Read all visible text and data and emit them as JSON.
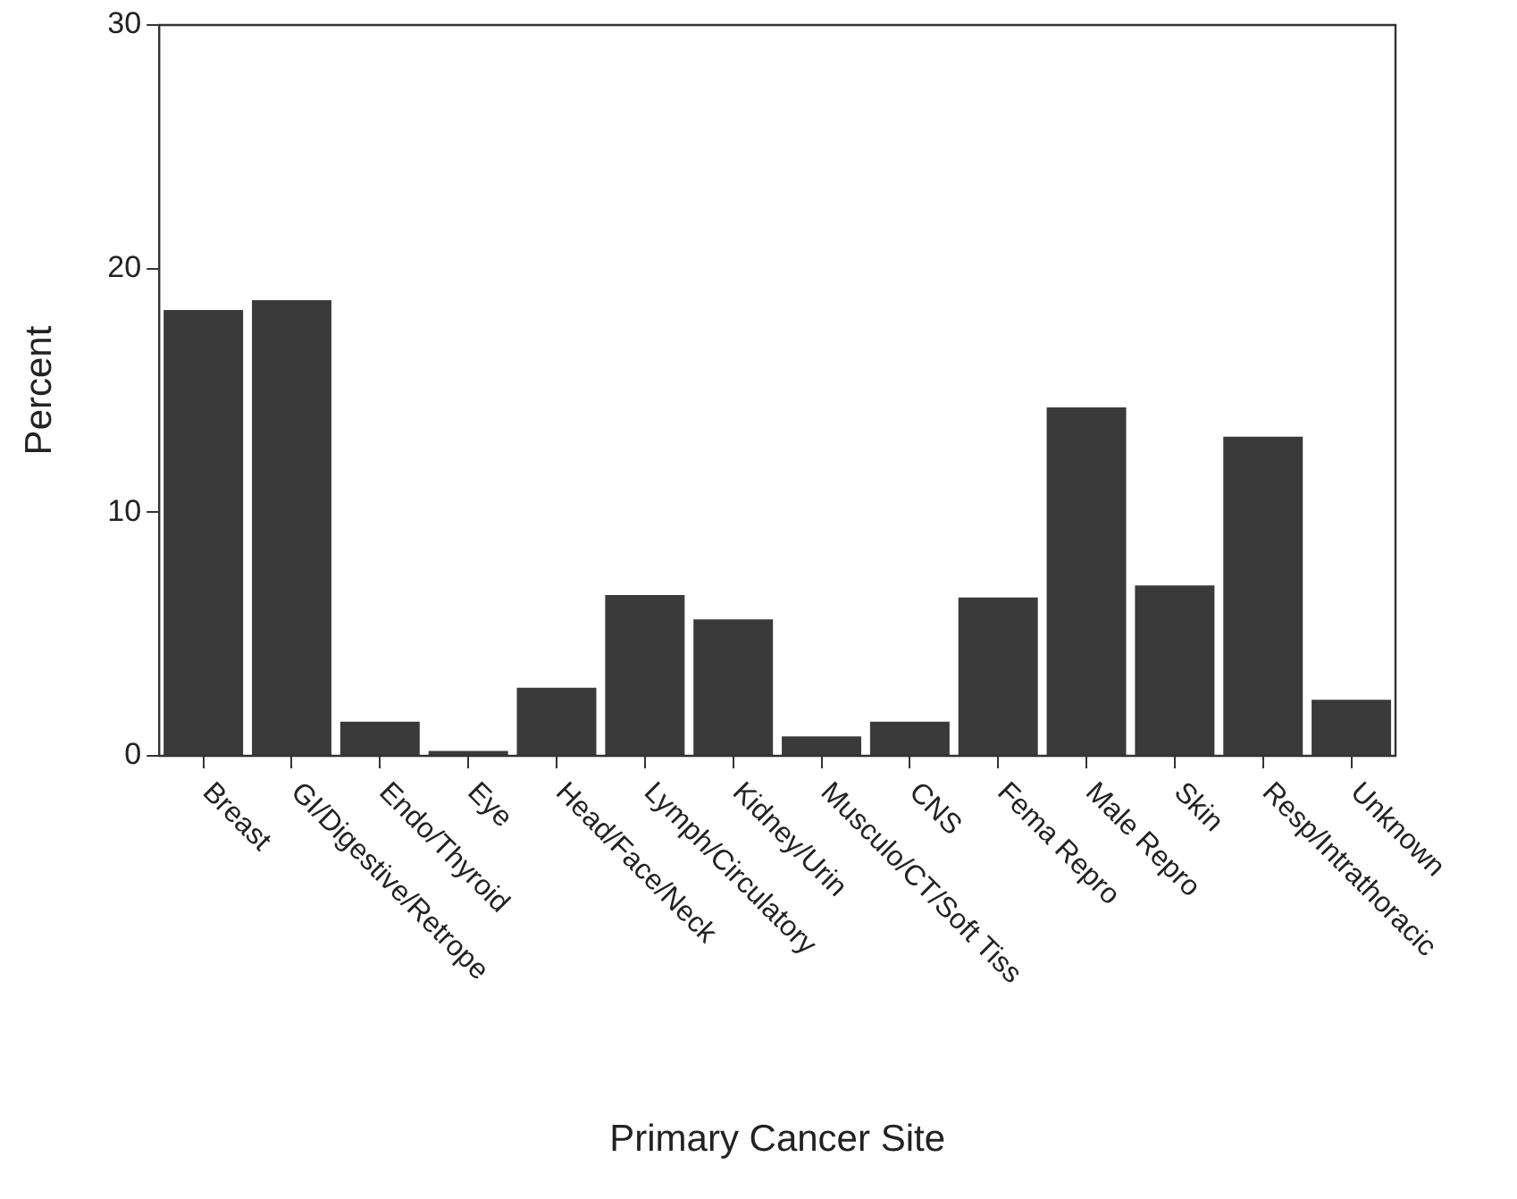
{
  "chart_data": {
    "type": "bar",
    "xlabel": "Primary Cancer Site",
    "ylabel": "Percent",
    "categories": [
      "Breast",
      "GI/Digestive/Retrope",
      "Endo/Thyroid",
      "Eye",
      "Head/Face/Neck",
      "Lymph/Circulatory",
      "Kidney/Urin",
      "Musculo/CT/Soft Tiss",
      "CNS",
      "Fema Repro",
      "Male Repro",
      "Skin",
      "Resp/Intrathoracic",
      "Unknown"
    ],
    "values": [
      18.3,
      18.7,
      1.4,
      0.2,
      2.8,
      6.6,
      5.6,
      0.8,
      1.4,
      6.5,
      14.3,
      7.0,
      13.1,
      2.3
    ],
    "color": "#3a3a3a",
    "ylim": [
      0,
      30
    ],
    "yticks": [
      0,
      10,
      20,
      30
    ],
    "grid": false,
    "legend": false
  }
}
